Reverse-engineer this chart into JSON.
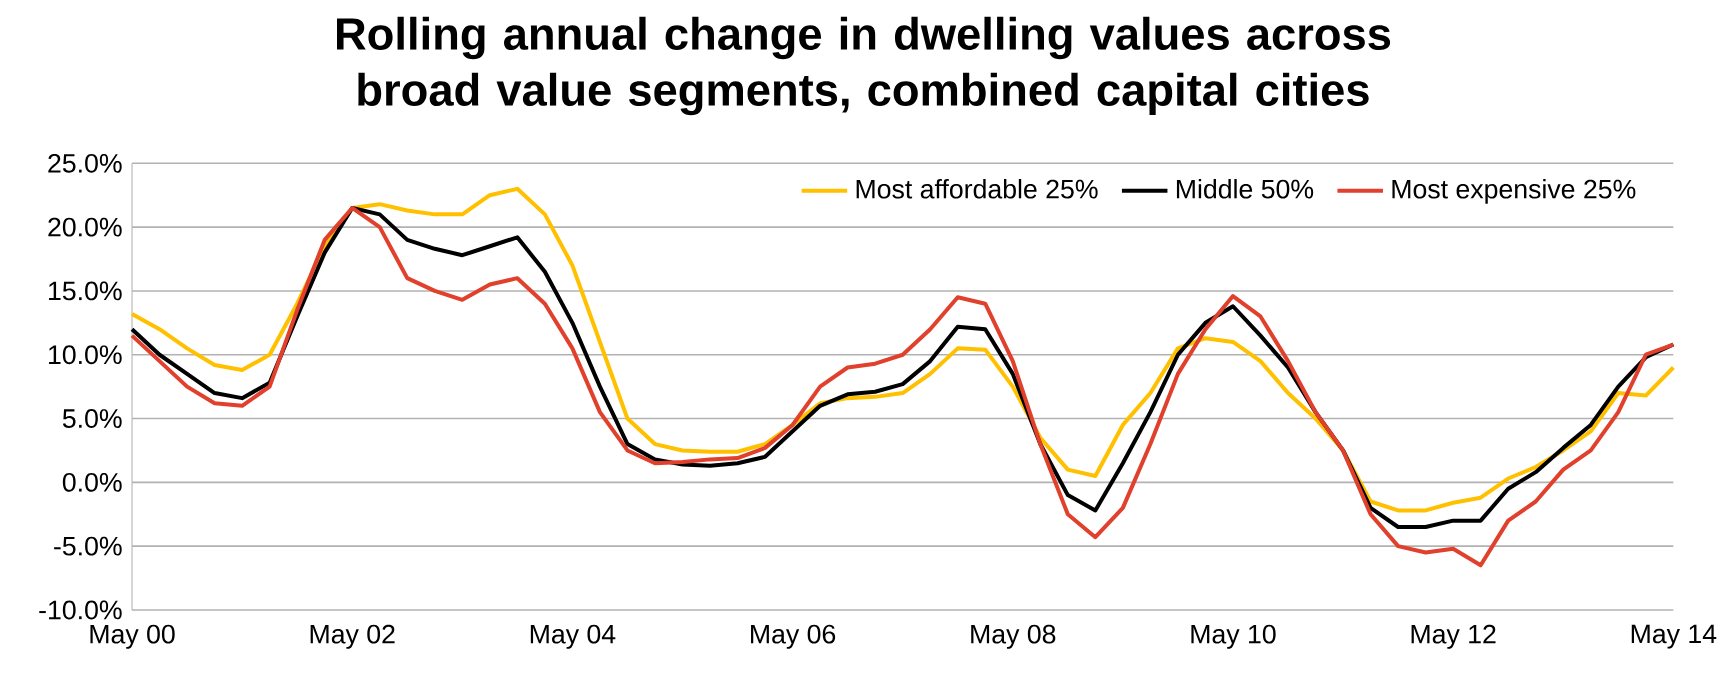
{
  "chart_data": {
    "type": "line",
    "title": "Rolling annual change in dwelling values across broad value segments, combined capital cities",
    "x": [
      "2000-05",
      "2000-08",
      "2000-11",
      "2001-02",
      "2001-05",
      "2001-08",
      "2001-11",
      "2002-02",
      "2002-05",
      "2002-08",
      "2002-11",
      "2003-02",
      "2003-05",
      "2003-08",
      "2003-11",
      "2004-02",
      "2004-05",
      "2004-08",
      "2004-11",
      "2005-02",
      "2005-05",
      "2005-08",
      "2005-11",
      "2006-02",
      "2006-05",
      "2006-08",
      "2006-11",
      "2007-02",
      "2007-05",
      "2007-08",
      "2007-11",
      "2008-02",
      "2008-05",
      "2008-08",
      "2008-11",
      "2009-02",
      "2009-05",
      "2009-08",
      "2009-11",
      "2010-02",
      "2010-05",
      "2010-08",
      "2010-11",
      "2011-02",
      "2011-05",
      "2011-08",
      "2011-11",
      "2012-02",
      "2012-05",
      "2012-08",
      "2012-11",
      "2013-02",
      "2013-05",
      "2013-08",
      "2013-11",
      "2014-02",
      "2014-05"
    ],
    "series": [
      {
        "name": "Most affordable 25%",
        "color": "#ffc000",
        "values": [
          13.2,
          12.0,
          10.5,
          9.2,
          8.8,
          10.0,
          14.0,
          18.5,
          21.5,
          21.8,
          21.3,
          21.0,
          21.0,
          22.5,
          23.0,
          21.0,
          17.0,
          11.0,
          5.0,
          3.0,
          2.5,
          2.4,
          2.4,
          3.0,
          4.5,
          6.2,
          6.6,
          6.7,
          7.0,
          8.5,
          10.5,
          10.4,
          7.5,
          3.5,
          1.0,
          0.5,
          4.5,
          7.0,
          10.5,
          11.3,
          11.0,
          9.5,
          7.0,
          5.0,
          2.5,
          -1.5,
          -2.2,
          -2.2,
          -1.6,
          -1.2,
          0.3,
          1.2,
          2.5,
          4.0,
          7.0,
          6.8,
          9.0
        ]
      },
      {
        "name": "Middle 50%",
        "color": "#000000",
        "values": [
          12.0,
          10.0,
          8.5,
          7.0,
          6.6,
          7.8,
          13.0,
          18.0,
          21.5,
          21.0,
          19.0,
          18.3,
          17.8,
          18.5,
          19.2,
          16.5,
          12.5,
          7.5,
          3.0,
          1.8,
          1.4,
          1.3,
          1.5,
          2.0,
          4.0,
          6.0,
          6.9,
          7.1,
          7.7,
          9.5,
          12.2,
          12.0,
          8.5,
          3.0,
          -1.0,
          -2.2,
          1.5,
          5.5,
          10.0,
          12.5,
          13.8,
          11.5,
          9.0,
          5.5,
          2.5,
          -2.0,
          -3.5,
          -3.5,
          -3.0,
          -3.0,
          -0.5,
          0.8,
          2.7,
          4.5,
          7.5,
          9.8,
          10.8
        ]
      },
      {
        "name": "Most expensive 25%",
        "color": "#e0402c",
        "values": [
          11.5,
          9.5,
          7.5,
          6.2,
          6.0,
          7.5,
          13.5,
          19.0,
          21.5,
          20.0,
          16.0,
          15.0,
          14.3,
          15.5,
          16.0,
          14.0,
          10.5,
          5.5,
          2.5,
          1.5,
          1.6,
          1.8,
          1.9,
          2.7,
          4.5,
          7.5,
          9.0,
          9.3,
          10.0,
          12.0,
          14.5,
          14.0,
          9.5,
          3.0,
          -2.5,
          -4.3,
          -2.0,
          3.0,
          8.5,
          12.0,
          14.6,
          13.0,
          9.5,
          5.5,
          2.5,
          -2.5,
          -5.0,
          -5.5,
          -5.2,
          -6.5,
          -3.0,
          -1.5,
          1.0,
          2.5,
          5.5,
          10.0,
          10.8
        ]
      }
    ],
    "xlim": [
      "2000-05",
      "2014-05"
    ],
    "xticks": [
      {
        "value": "2000-05",
        "label": "May 00"
      },
      {
        "value": "2002-05",
        "label": "May 02"
      },
      {
        "value": "2004-05",
        "label": "May 04"
      },
      {
        "value": "2006-05",
        "label": "May 06"
      },
      {
        "value": "2008-05",
        "label": "May 08"
      },
      {
        "value": "2010-05",
        "label": "May 10"
      },
      {
        "value": "2012-05",
        "label": "May 12"
      },
      {
        "value": "2014-05",
        "label": "May 14"
      }
    ],
    "ylim": [
      -10,
      25
    ],
    "yticks": [
      {
        "value": -10,
        "label": "-10.0%"
      },
      {
        "value": -5,
        "label": "-5.0%"
      },
      {
        "value": 0,
        "label": "0.0%"
      },
      {
        "value": 5,
        "label": "5.0%"
      },
      {
        "value": 10,
        "label": "10.0%"
      },
      {
        "value": 15,
        "label": "15.0%"
      },
      {
        "value": 20,
        "label": "20.0%"
      },
      {
        "value": 25,
        "label": "25.0%"
      }
    ],
    "grid": "y",
    "legend": "top right",
    "marker": "none",
    "line_style": "solid"
  }
}
